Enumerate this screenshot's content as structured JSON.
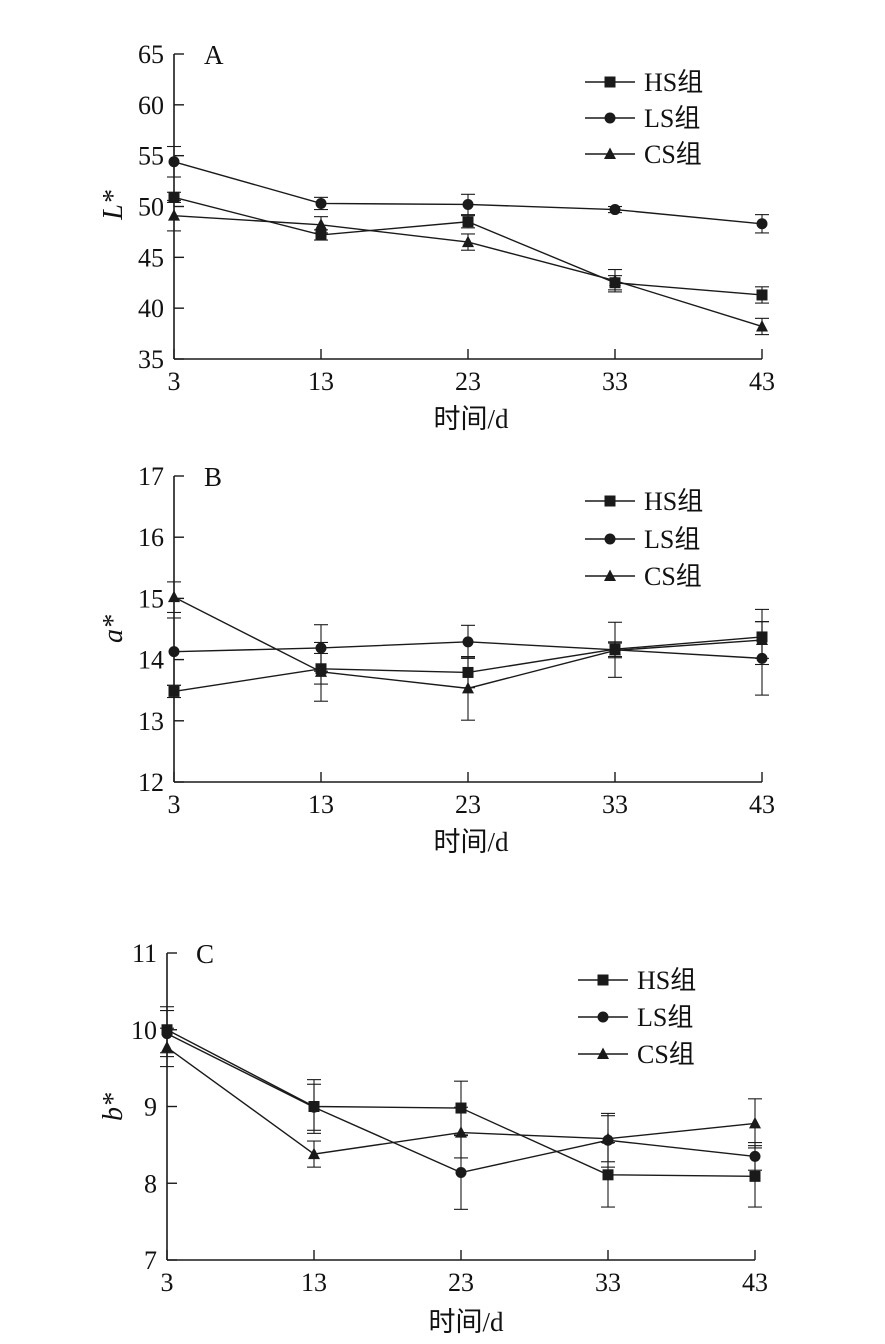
{
  "chart_data": [
    {
      "type": "line",
      "panel_label": "A",
      "ylabel": "L*",
      "xlabel": "时间/d",
      "x": [
        3,
        13,
        23,
        33,
        43
      ],
      "xticks": [
        "3",
        "13",
        "23",
        "33",
        "43"
      ],
      "ylim": [
        35,
        65
      ],
      "yticks": [
        35,
        40,
        45,
        50,
        55,
        60,
        65
      ],
      "ytick_labels": [
        "35",
        "40",
        "45",
        "50",
        "55",
        "60",
        "65"
      ],
      "legend_position": "top-right",
      "series": [
        {
          "name": "HS组",
          "marker": "square",
          "values": [
            50.9,
            47.2,
            48.5,
            42.5,
            41.3
          ],
          "errors": [
            0.5,
            0.5,
            0.6,
            0.7,
            0.8
          ]
        },
        {
          "name": "LS组",
          "marker": "circle",
          "values": [
            54.4,
            50.3,
            50.2,
            49.7,
            48.3
          ],
          "errors": [
            1.5,
            0.6,
            1.0,
            0.3,
            0.9
          ]
        },
        {
          "name": "CS组",
          "marker": "triangle",
          "values": [
            49.1,
            48.2,
            46.5,
            42.7,
            38.2
          ],
          "errors": [
            1.5,
            0.8,
            0.8,
            1.1,
            0.8
          ]
        }
      ]
    },
    {
      "type": "line",
      "panel_label": "B",
      "ylabel": "a*",
      "xlabel": "时间/d",
      "x": [
        3,
        13,
        23,
        33,
        43
      ],
      "xticks": [
        "3",
        "13",
        "23",
        "33",
        "43"
      ],
      "ylim": [
        12,
        17
      ],
      "yticks": [
        12,
        13,
        14,
        15,
        16,
        17
      ],
      "ytick_labels": [
        "12",
        "13",
        "14",
        "15",
        "16",
        "17"
      ],
      "legend_position": "top-right",
      "series": [
        {
          "name": "HS组",
          "marker": "square",
          "values": [
            13.48,
            13.85,
            13.79,
            14.17,
            14.37
          ],
          "errors": [
            0.1,
            0.25,
            0.25,
            0.12,
            0.45
          ]
        },
        {
          "name": "LS组",
          "marker": "circle",
          "values": [
            14.13,
            14.19,
            14.29,
            14.16,
            14.02
          ],
          "errors": [
            0.55,
            0.38,
            0.27,
            0.45,
            0.6
          ]
        },
        {
          "name": "CS组",
          "marker": "triangle",
          "values": [
            15.02,
            13.8,
            13.53,
            14.15,
            14.32
          ],
          "errors": [
            0.25,
            0.48,
            0.52,
            0.12,
            0.3
          ]
        }
      ]
    },
    {
      "type": "line",
      "panel_label": "C",
      "ylabel": "b*",
      "xlabel": "时间/d",
      "x": [
        3,
        13,
        23,
        33,
        43
      ],
      "xticks": [
        "3",
        "13",
        "23",
        "33",
        "43"
      ],
      "ylim": [
        7,
        11
      ],
      "yticks": [
        7,
        8,
        9,
        10,
        11
      ],
      "ytick_labels": [
        "7",
        "8",
        "9",
        "10",
        "11"
      ],
      "legend_position": "top-right",
      "series": [
        {
          "name": "HS组",
          "marker": "square",
          "values": [
            10.0,
            9.0,
            8.98,
            8.11,
            8.09
          ],
          "errors": [
            0.3,
            0.35,
            0.35,
            0.42,
            0.4
          ]
        },
        {
          "name": "LS组",
          "marker": "circle",
          "values": [
            9.95,
            8.99,
            8.14,
            8.56,
            8.35
          ],
          "errors": [
            0.3,
            0.3,
            0.48,
            0.35,
            0.18
          ]
        },
        {
          "name": "CS组",
          "marker": "triangle",
          "values": [
            9.77,
            8.38,
            8.66,
            8.58,
            8.78
          ],
          "errors": [
            0.25,
            0.17,
            0.33,
            0.3,
            0.32
          ]
        }
      ]
    }
  ]
}
